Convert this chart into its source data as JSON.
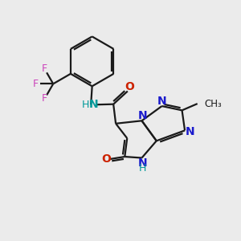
{
  "background_color": "#ebebeb",
  "bond_color": "#1a1a1a",
  "N_color": "#1a1acc",
  "O_color": "#cc2200",
  "F_color": "#cc44bb",
  "NH_color": "#009999",
  "figsize": [
    3.0,
    3.0
  ],
  "dpi": 100,
  "xlim": [
    0,
    10
  ],
  "ylim": [
    0,
    10
  ]
}
